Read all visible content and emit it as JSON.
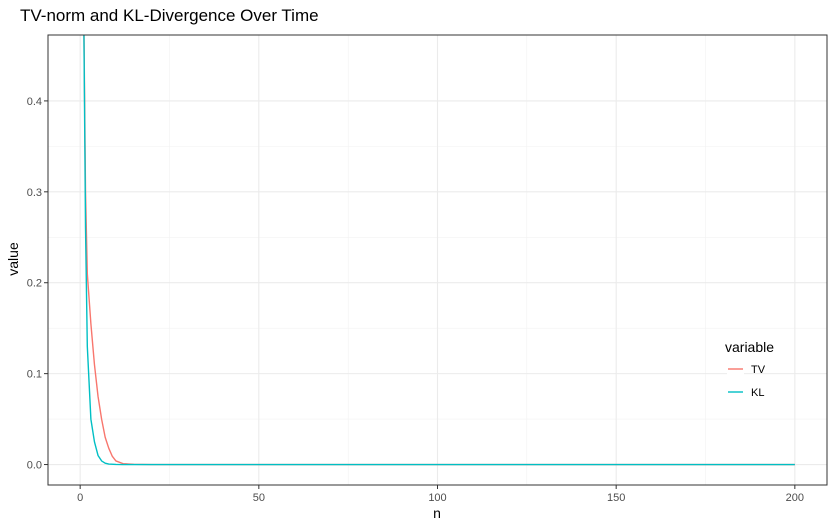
{
  "chart_data": {
    "type": "line",
    "title": "TV-norm and KL-Divergence Over Time",
    "xlabel": "n",
    "ylabel": "value",
    "xlim": [
      -9,
      209
    ],
    "ylim": [
      -0.0225,
      0.4725
    ],
    "x_ticks": [
      0,
      50,
      100,
      150,
      200
    ],
    "x_tick_labels": [
      "0",
      "50",
      "100",
      "150",
      "200"
    ],
    "y_ticks": [
      0.0,
      0.1,
      0.2,
      0.3,
      0.4
    ],
    "y_tick_labels": [
      "0.0",
      "0.1",
      "0.2",
      "0.3",
      "0.4"
    ],
    "grid": true,
    "legend": {
      "title": "variable",
      "position": "right"
    },
    "series": [
      {
        "name": "TV",
        "color": "#F8766D",
        "x": [
          1,
          1.5,
          2,
          3,
          4,
          5,
          6,
          7,
          8,
          9,
          10,
          12,
          15,
          20,
          200
        ],
        "y": [
          0.5,
          0.3,
          0.21,
          0.155,
          0.11,
          0.075,
          0.05,
          0.03,
          0.018,
          0.009,
          0.004,
          0.001,
          0.0002,
          0.0,
          0.0
        ]
      },
      {
        "name": "KL",
        "color": "#00BFC4",
        "x": [
          1,
          1.5,
          2,
          3,
          4,
          5,
          6,
          7,
          8,
          10,
          12,
          15,
          200
        ],
        "y": [
          0.5,
          0.26,
          0.13,
          0.05,
          0.025,
          0.01,
          0.004,
          0.0015,
          0.0005,
          0.0001,
          0.0,
          0.0,
          0.0
        ]
      }
    ]
  }
}
